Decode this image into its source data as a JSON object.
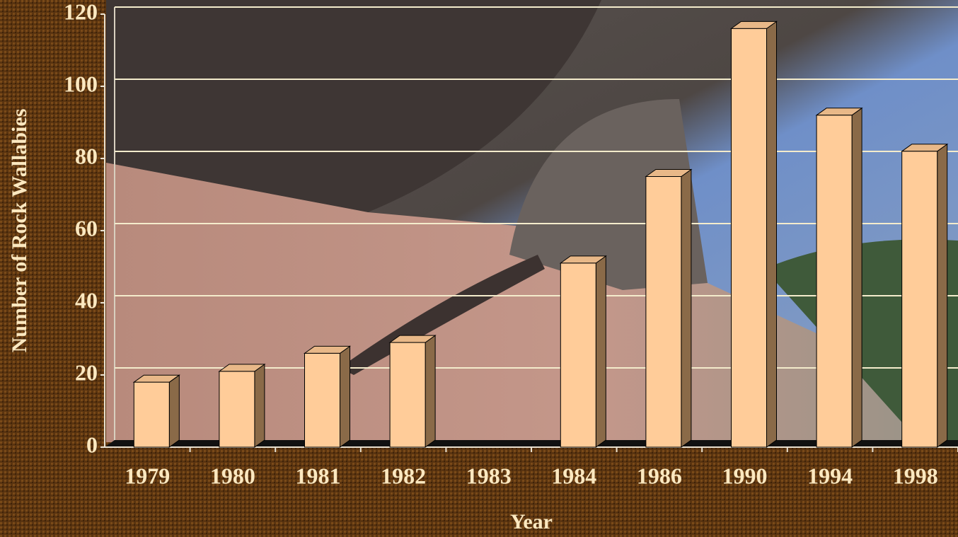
{
  "chart_data": {
    "type": "bar",
    "categories": [
      "1979",
      "1980",
      "1981",
      "1982",
      "1983",
      "1984",
      "1986",
      "1990",
      "1994",
      "1998"
    ],
    "values": [
      18,
      21,
      26,
      29,
      null,
      51,
      75,
      116,
      92,
      82
    ],
    "color": "#ffcc99",
    "xlabel": "Year",
    "ylabel": "Number of Rock Wallabies",
    "ylim": [
      0,
      120
    ],
    "yticks": [
      0,
      20,
      40,
      60,
      80,
      100,
      120
    ],
    "grid": true
  }
}
